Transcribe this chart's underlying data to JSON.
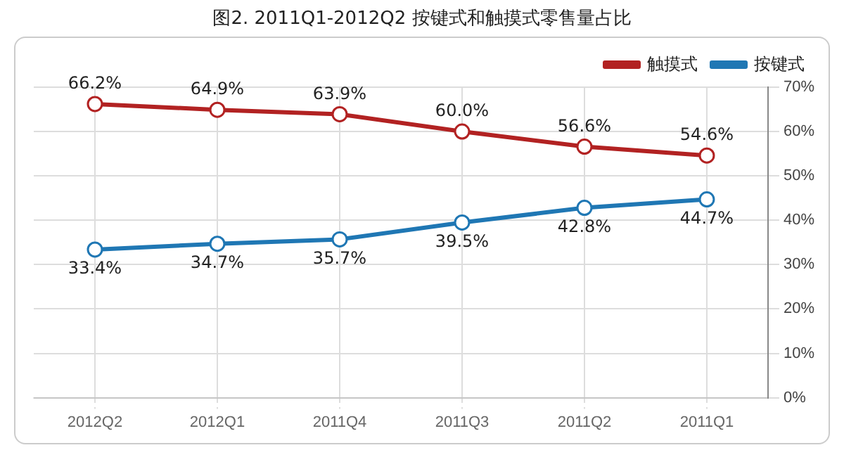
{
  "chart_data": {
    "type": "line",
    "title": "图2. 2011Q1-2012Q2 按键式和触摸式零售量占比",
    "categories": [
      "2012Q2",
      "2012Q1",
      "2011Q4",
      "2011Q3",
      "2011Q2",
      "2011Q1"
    ],
    "series": [
      {
        "name": "触摸式",
        "color": "#b22222",
        "values": [
          66.2,
          64.9,
          63.9,
          60.0,
          56.6,
          54.6
        ],
        "value_labels": [
          "66.2%",
          "64.9%",
          "63.9%",
          "60.0%",
          "56.6%",
          "54.6%"
        ]
      },
      {
        "name": "按键式",
        "color": "#1f77b4",
        "values": [
          33.4,
          34.7,
          35.7,
          39.5,
          42.8,
          44.7
        ],
        "value_labels": [
          "33.4%",
          "34.7%",
          "35.7%",
          "39.5%",
          "42.8%",
          "44.7%"
        ]
      }
    ],
    "ylim": [
      0,
      70
    ],
    "yticks": [
      {
        "value": 0,
        "label": "0%"
      },
      {
        "value": 10,
        "label": "10%"
      },
      {
        "value": 20,
        "label": "20%"
      },
      {
        "value": 30,
        "label": "30%"
      },
      {
        "value": 40,
        "label": "40%"
      },
      {
        "value": 50,
        "label": "50%"
      },
      {
        "value": 60,
        "label": "60%"
      },
      {
        "value": 70,
        "label": "70%"
      }
    ],
    "grid": true,
    "legend": "top right",
    "marker": "circle",
    "line_style": "solid"
  }
}
